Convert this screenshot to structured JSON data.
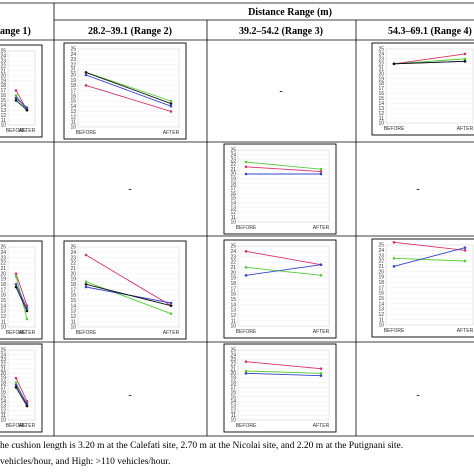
{
  "header": {
    "distance_title": "Distance Range (m)",
    "col1": "ange 1)",
    "col2": "28.2–39.1 (Range 2)",
    "col3": "39.2–54.2 (Range 3)",
    "col4": "54.3–69.1 (Range 4)"
  },
  "dash": "-",
  "footnote": {
    "line1": "he cushion length is 3.20 m at the Calefati site, 2.70 m at the Nicolai site, and 2.20 m at the Putignani site.",
    "line2": "vehicles/hour, and High: >110 vehicles/hour."
  },
  "colors": {
    "red": "#d6336c",
    "green": "#55cc33",
    "blue": "#3344cc",
    "black": "#111111"
  },
  "chart_data": [
    {
      "type": "line",
      "cell": "r1c1",
      "x": [
        "BEFORE",
        "AFTER"
      ],
      "ylim": [
        10,
        25
      ],
      "yticks": [
        10,
        11,
        12,
        13,
        14,
        15,
        16,
        17,
        18,
        19,
        20,
        21,
        22,
        23,
        24,
        25
      ],
      "series": [
        {
          "values": [
            17,
            13
          ]
        },
        {
          "values": [
            16,
            13
          ]
        },
        {
          "values": [
            15.5,
            13.5
          ]
        },
        {
          "values": [
            15,
            13
          ]
        }
      ]
    },
    {
      "type": "line",
      "cell": "r1c2",
      "x": [
        "BEFORE",
        "AFTER"
      ],
      "ylim": [
        10,
        25
      ],
      "yticks": [
        10,
        11,
        12,
        13,
        14,
        15,
        16,
        17,
        18,
        19,
        20,
        21,
        22,
        23,
        24,
        25
      ],
      "series": [
        {
          "values": [
            18,
            13
          ]
        },
        {
          "values": [
            20.5,
            15
          ]
        },
        {
          "values": [
            20,
            14
          ]
        },
        {
          "values": [
            20.5,
            14.5
          ]
        }
      ]
    },
    {
      "type": "line",
      "cell": "r1c4",
      "x": [
        "BEFORE",
        "AFTER"
      ],
      "ylim": [
        10,
        25
      ],
      "yticks": [
        10,
        11,
        12,
        13,
        14,
        15,
        16,
        17,
        18,
        19,
        20,
        21,
        22,
        23,
        24,
        25
      ],
      "series": [
        {
          "values": [
            22,
            24
          ]
        },
        {
          "values": [
            22,
            23
          ]
        },
        {
          "values": [
            22,
            22.5
          ]
        },
        {
          "values": [
            22,
            22.5
          ]
        }
      ]
    },
    {
      "type": "line",
      "cell": "r2c3",
      "x": [
        "BEFORE",
        "AFTER"
      ],
      "ylim": [
        10,
        25
      ],
      "yticks": [
        10,
        11,
        12,
        13,
        14,
        15,
        16,
        17,
        18,
        19,
        20,
        21,
        22,
        23,
        24,
        25
      ],
      "series": [
        {
          "values": [
            21.5,
            20.5
          ]
        },
        {
          "values": [
            22.5,
            21
          ]
        },
        {
          "values": [
            20,
            20
          ]
        }
      ]
    },
    {
      "type": "line",
      "cell": "r3c1",
      "x": [
        "BEFORE",
        "AFTER"
      ],
      "ylim": [
        10,
        25
      ],
      "yticks": [
        10,
        11,
        12,
        13,
        14,
        15,
        16,
        17,
        18,
        19,
        20,
        21,
        22,
        23,
        24,
        25
      ],
      "series": [
        {
          "values": [
            20,
            14
          ]
        },
        {
          "values": [
            19.5,
            11.5
          ]
        },
        {
          "values": [
            18,
            13.5
          ]
        },
        {
          "values": [
            17.5,
            13
          ]
        }
      ]
    },
    {
      "type": "line",
      "cell": "r3c2",
      "x": [
        "BEFORE",
        "AFTER"
      ],
      "ylim": [
        10,
        25
      ],
      "yticks": [
        10,
        11,
        12,
        13,
        14,
        15,
        16,
        17,
        18,
        19,
        20,
        21,
        22,
        23,
        24,
        25
      ],
      "series": [
        {
          "values": [
            23.5,
            14
          ]
        },
        {
          "values": [
            18.5,
            12.5
          ]
        },
        {
          "values": [
            17.5,
            14.5
          ]
        },
        {
          "values": [
            18,
            14
          ]
        }
      ]
    },
    {
      "type": "line",
      "cell": "r3c3",
      "x": [
        "BEFORE",
        "AFTER"
      ],
      "ylim": [
        10,
        25
      ],
      "yticks": [
        10,
        11,
        12,
        13,
        14,
        15,
        16,
        17,
        18,
        19,
        20,
        21,
        22,
        23,
        24,
        25
      ],
      "series": [
        {
          "values": [
            24,
            21.5
          ]
        },
        {
          "values": [
            21,
            19.5
          ]
        },
        {
          "values": [
            19.5,
            21.5
          ]
        }
      ]
    },
    {
      "type": "line",
      "cell": "r3c4",
      "x": [
        "BEFORE",
        "AFTER"
      ],
      "ylim": [
        10,
        25
      ],
      "yticks": [
        10,
        11,
        12,
        13,
        14,
        15,
        16,
        17,
        18,
        19,
        20,
        21,
        22,
        23,
        24,
        25
      ],
      "series": [
        {
          "values": [
            25.5,
            24
          ]
        },
        {
          "values": [
            22.5,
            22
          ]
        },
        {
          "values": [
            21,
            24.5
          ]
        }
      ]
    },
    {
      "type": "line",
      "cell": "r4c1",
      "x": [
        "BEFORE",
        "AFTER"
      ],
      "ylim": [
        10,
        25
      ],
      "yticks": [
        10,
        11,
        12,
        13,
        14,
        15,
        16,
        17,
        18,
        19,
        20,
        21,
        22,
        23,
        24,
        25
      ],
      "series": [
        {
          "values": [
            19,
            14
          ]
        },
        {
          "values": [
            18,
            13
          ]
        },
        {
          "values": [
            17.5,
            13.5
          ]
        },
        {
          "values": [
            17,
            13
          ]
        }
      ]
    },
    {
      "type": "line",
      "cell": "r4c3",
      "x": [
        "BEFORE",
        "AFTER"
      ],
      "ylim": [
        10,
        25
      ],
      "yticks": [
        10,
        11,
        12,
        13,
        14,
        15,
        16,
        17,
        18,
        19,
        20,
        21,
        22,
        23,
        24,
        25
      ],
      "series": [
        {
          "values": [
            22.5,
            21
          ]
        },
        {
          "values": [
            20.5,
            20
          ]
        },
        {
          "values": [
            20,
            19.5
          ]
        }
      ]
    }
  ]
}
